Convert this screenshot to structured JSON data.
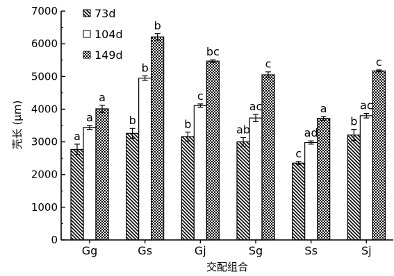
{
  "chart_data": {
    "type": "bar",
    "title": "",
    "xlabel": "交配组合",
    "ylabel": "壳长 (μm)",
    "ylim": [
      0,
      7000
    ],
    "yticks": [
      0,
      1000,
      2000,
      3000,
      4000,
      5000,
      6000,
      7000
    ],
    "categories": [
      "Gg",
      "Gs",
      "Gj",
      "Sg",
      "Ss",
      "Sj"
    ],
    "legend_position": "top-left",
    "grid": false,
    "series": [
      {
        "name": "73d",
        "pattern": "diagonal-hatch",
        "values": [
          2770,
          3260,
          3160,
          3000,
          2350,
          3210
        ],
        "errors": [
          160,
          150,
          140,
          130,
          50,
          170
        ],
        "labels": [
          "a",
          "b",
          "b",
          "ab",
          "c",
          "b"
        ]
      },
      {
        "name": "104d",
        "pattern": "white",
        "values": [
          3440,
          4950,
          4110,
          3730,
          2980,
          3800
        ],
        "errors": [
          60,
          70,
          50,
          110,
          50,
          70
        ],
        "labels": [
          "a",
          "b",
          "c",
          "ac",
          "ad",
          "ac"
        ]
      },
      {
        "name": "149d",
        "pattern": "checker",
        "values": [
          4010,
          6210,
          5470,
          5050,
          3720,
          5170
        ],
        "errors": [
          110,
          100,
          40,
          90,
          60,
          30
        ],
        "labels": [
          "a",
          "b",
          "bc",
          "c",
          "a",
          "c"
        ]
      }
    ]
  }
}
